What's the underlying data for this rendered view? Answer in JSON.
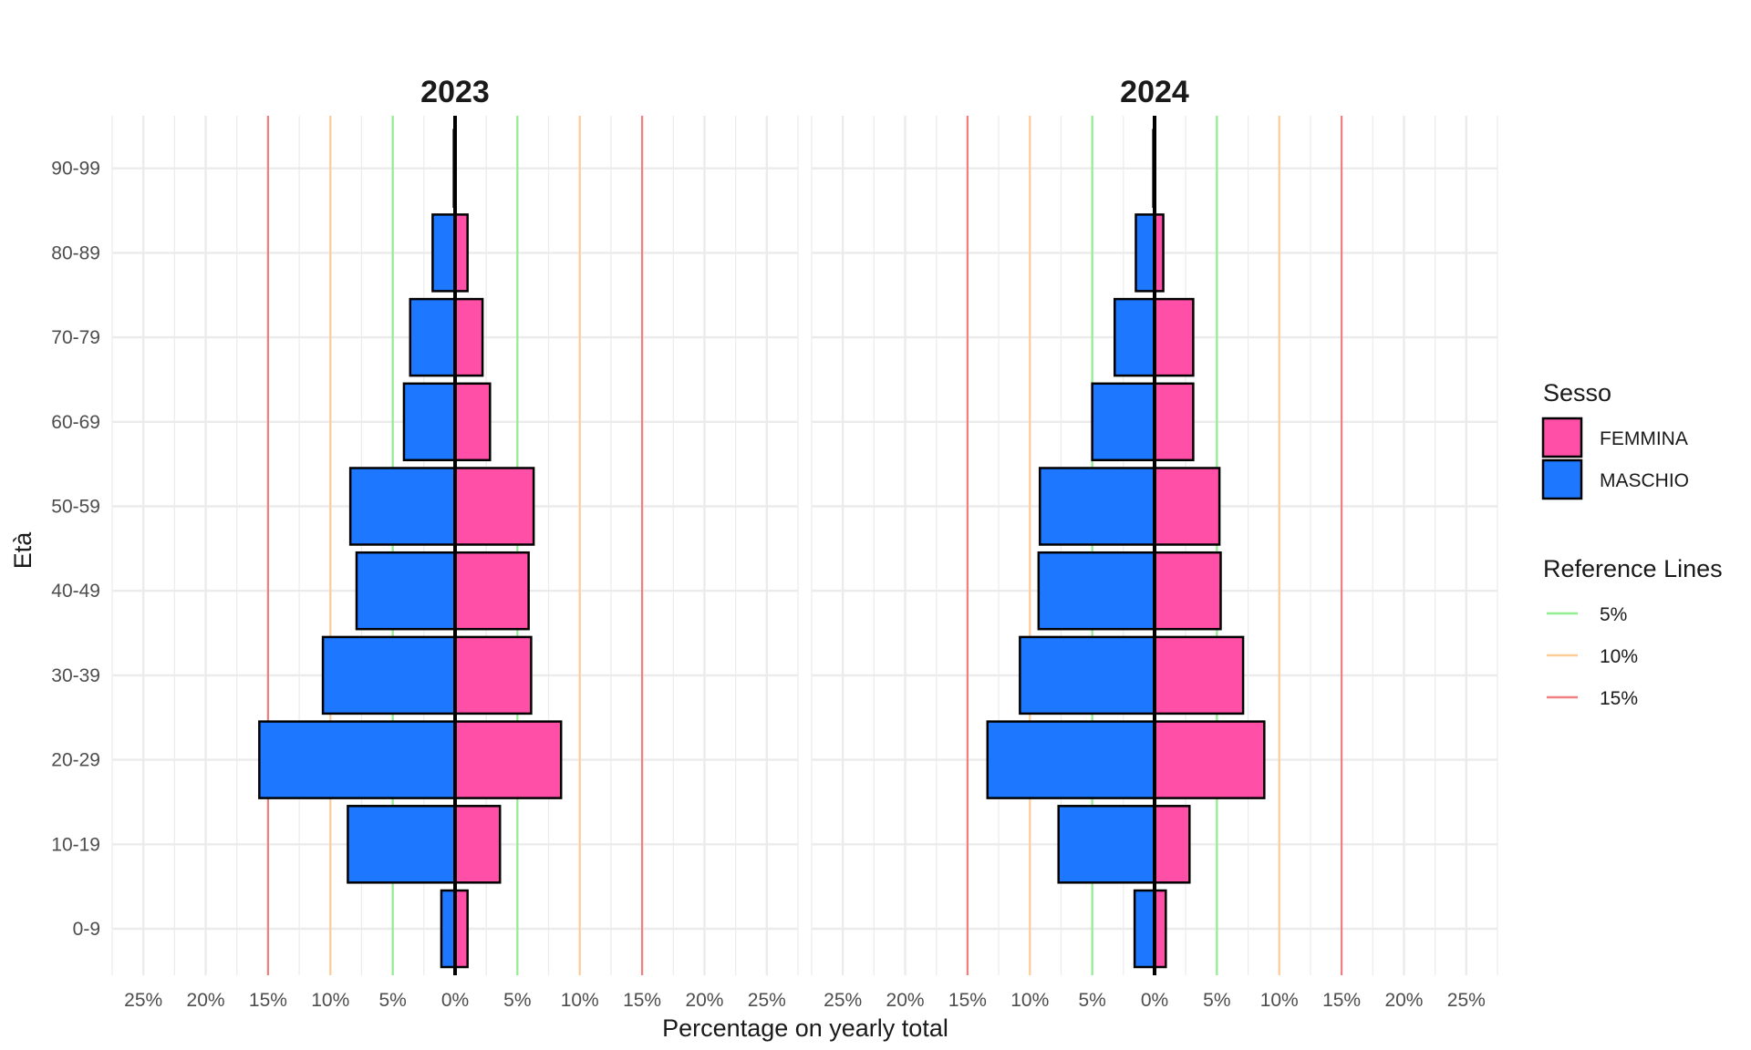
{
  "chart_data": {
    "type": "bar",
    "orientation": "horizontal",
    "subtype": "population-pyramid",
    "xlabel": "Percentage on yearly total",
    "ylabel": "Età",
    "x_tick_labels": [
      "25%",
      "20%",
      "15%",
      "10%",
      "5%",
      "0%",
      "5%",
      "10%",
      "15%",
      "20%",
      "25%"
    ],
    "x_ticks": [
      -25,
      -20,
      -15,
      -10,
      -5,
      0,
      5,
      10,
      15,
      20,
      25
    ],
    "xlim": [
      -27.5,
      27.5
    ],
    "categories": [
      "0-9",
      "10-19",
      "20-29",
      "30-39",
      "40-49",
      "50-59",
      "60-69",
      "70-79",
      "80-89",
      "90-99"
    ],
    "grid": true,
    "legend_position": "right",
    "colors": {
      "FEMMINA": "#FF4FA7",
      "MASCHIO": "#1E78FF",
      "bar_outline": "#000000",
      "grid": "#EBEBEB",
      "ref_5": "#90EE90",
      "ref_10": "#FFCC99",
      "ref_15": "#F08080"
    },
    "legend": {
      "fill_title": "Sesso",
      "fill_entries": [
        "FEMMINA",
        "MASCHIO"
      ],
      "ref_title": "Reference Lines",
      "ref_entries": [
        {
          "label": "5%",
          "value": 5,
          "color": "#90EE90"
        },
        {
          "label": "10%",
          "value": 10,
          "color": "#FFCC99"
        },
        {
          "label": "15%",
          "value": 15,
          "color": "#F08080"
        }
      ]
    },
    "facets": [
      {
        "title": "2023",
        "series": [
          {
            "name": "FEMMINA",
            "values": [
              1.0,
              3.6,
              8.5,
              6.1,
              5.9,
              6.3,
              2.8,
              2.2,
              1.0,
              0.05
            ]
          },
          {
            "name": "MASCHIO",
            "values": [
              1.1,
              8.6,
              15.7,
              10.6,
              7.9,
              8.4,
              4.1,
              3.6,
              1.8,
              0.1
            ]
          }
        ]
      },
      {
        "title": "2024",
        "series": [
          {
            "name": "FEMMINA",
            "values": [
              0.9,
              2.8,
              8.8,
              7.1,
              5.3,
              5.2,
              3.1,
              3.1,
              0.7,
              0.05
            ]
          },
          {
            "name": "MASCHIO",
            "values": [
              1.6,
              7.7,
              13.4,
              10.8,
              9.3,
              9.2,
              5.0,
              3.2,
              1.5,
              0.1
            ]
          }
        ]
      }
    ]
  }
}
